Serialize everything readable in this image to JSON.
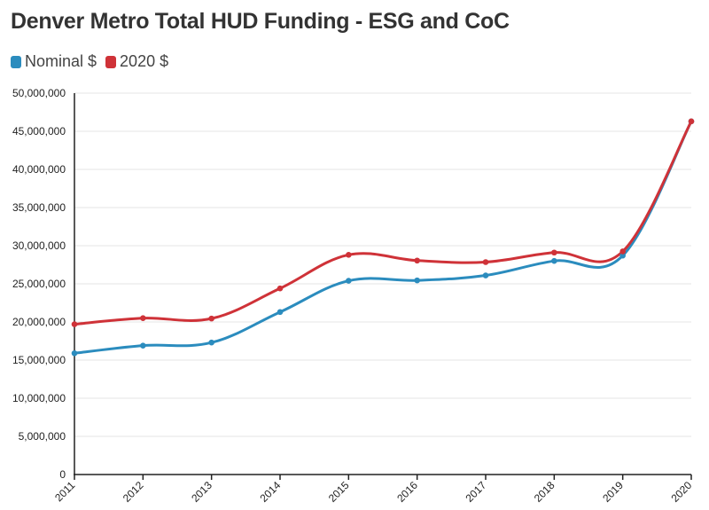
{
  "title": "Denver Metro Total HUD Funding - ESG and CoC",
  "chart_data": {
    "type": "line",
    "title": "Denver Metro Total HUD Funding - ESG and CoC",
    "xlabel": "",
    "ylabel": "",
    "categories": [
      "2011",
      "2012",
      "2013",
      "2014",
      "2015",
      "2016",
      "2017",
      "2018",
      "2019",
      "2020"
    ],
    "ylim": [
      0,
      50000000
    ],
    "yticks": [
      0,
      5000000,
      10000000,
      15000000,
      20000000,
      25000000,
      30000000,
      35000000,
      40000000,
      45000000,
      50000000
    ],
    "ytick_labels": [
      "0",
      "5,000,000",
      "10,000,000",
      "15,000,000",
      "20,000,000",
      "25,000,000",
      "30,000,000",
      "35,000,000",
      "40,000,000",
      "45,000,000",
      "50,000,000"
    ],
    "grid": true,
    "legend_position": "top-left",
    "series": [
      {
        "name": "Nominal $",
        "color": "#2b8cbe",
        "values": [
          15900000,
          16900000,
          17300000,
          21300000,
          25400000,
          25450000,
          26100000,
          28000000,
          28700000,
          46300000
        ]
      },
      {
        "name": "2020 $",
        "color": "#cf3238",
        "values": [
          19700000,
          20500000,
          20450000,
          24400000,
          28800000,
          28050000,
          27850000,
          29100000,
          29250000,
          46300000
        ]
      }
    ]
  }
}
